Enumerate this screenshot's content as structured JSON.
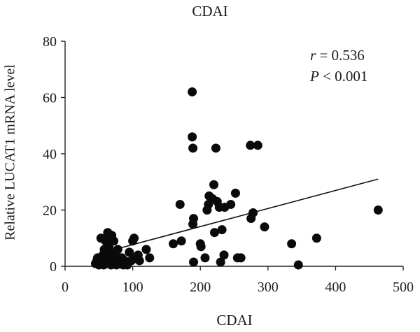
{
  "chart_data": {
    "type": "scatter",
    "title": "CDAI",
    "xlabel": "CDAI",
    "ylabel": "Relative LUCAT1 mRNA level",
    "xlim": [
      0,
      500
    ],
    "ylim": [
      0,
      80
    ],
    "xticks": [
      0,
      100,
      200,
      300,
      400,
      500
    ],
    "yticks": [
      0,
      20,
      40,
      60,
      80
    ],
    "grid": false,
    "annotation": {
      "r_symbol": "r",
      "r_text": " = 0.536",
      "p_symbol": "P",
      "p_text": " < 0.001"
    },
    "points": [
      {
        "x": 45,
        "y": 1
      },
      {
        "x": 47,
        "y": 2
      },
      {
        "x": 48,
        "y": 3
      },
      {
        "x": 50,
        "y": 0.5
      },
      {
        "x": 52,
        "y": 1.5
      },
      {
        "x": 53,
        "y": 10
      },
      {
        "x": 55,
        "y": 2
      },
      {
        "x": 56,
        "y": 4
      },
      {
        "x": 57,
        "y": 0.5
      },
      {
        "x": 58,
        "y": 6
      },
      {
        "x": 60,
        "y": 1
      },
      {
        "x": 60,
        "y": 9
      },
      {
        "x": 62,
        "y": 3
      },
      {
        "x": 63,
        "y": 12
      },
      {
        "x": 64,
        "y": 1
      },
      {
        "x": 65,
        "y": 7
      },
      {
        "x": 66,
        "y": 2
      },
      {
        "x": 67,
        "y": 5
      },
      {
        "x": 68,
        "y": 0.5
      },
      {
        "x": 69,
        "y": 11
      },
      {
        "x": 70,
        "y": 3
      },
      {
        "x": 72,
        "y": 9
      },
      {
        "x": 73,
        "y": 1.5
      },
      {
        "x": 75,
        "y": 4
      },
      {
        "x": 76,
        "y": 0.5
      },
      {
        "x": 78,
        "y": 6
      },
      {
        "x": 80,
        "y": 2
      },
      {
        "x": 82,
        "y": 1
      },
      {
        "x": 84,
        "y": 3
      },
      {
        "x": 86,
        "y": 0.5
      },
      {
        "x": 88,
        "y": 2
      },
      {
        "x": 90,
        "y": 1
      },
      {
        "x": 92,
        "y": 0.5
      },
      {
        "x": 95,
        "y": 5
      },
      {
        "x": 98,
        "y": 2
      },
      {
        "x": 100,
        "y": 9
      },
      {
        "x": 102,
        "y": 10
      },
      {
        "x": 105,
        "y": 3
      },
      {
        "x": 108,
        "y": 4
      },
      {
        "x": 110,
        "y": 2
      },
      {
        "x": 120,
        "y": 6
      },
      {
        "x": 125,
        "y": 3
      },
      {
        "x": 160,
        "y": 8
      },
      {
        "x": 170,
        "y": 22
      },
      {
        "x": 172,
        "y": 9
      },
      {
        "x": 188,
        "y": 62
      },
      {
        "x": 188,
        "y": 46
      },
      {
        "x": 189,
        "y": 42
      },
      {
        "x": 189,
        "y": 15
      },
      {
        "x": 190,
        "y": 17
      },
      {
        "x": 190,
        "y": 1.5
      },
      {
        "x": 200,
        "y": 8
      },
      {
        "x": 201,
        "y": 7
      },
      {
        "x": 207,
        "y": 3
      },
      {
        "x": 210,
        "y": 20
      },
      {
        "x": 212,
        "y": 22
      },
      {
        "x": 213,
        "y": 25
      },
      {
        "x": 218,
        "y": 24
      },
      {
        "x": 220,
        "y": 29
      },
      {
        "x": 221,
        "y": 12
      },
      {
        "x": 223,
        "y": 42
      },
      {
        "x": 225,
        "y": 23
      },
      {
        "x": 228,
        "y": 21
      },
      {
        "x": 230,
        "y": 1.5
      },
      {
        "x": 232,
        "y": 13
      },
      {
        "x": 235,
        "y": 4
      },
      {
        "x": 236,
        "y": 21
      },
      {
        "x": 245,
        "y": 22
      },
      {
        "x": 252,
        "y": 26
      },
      {
        "x": 255,
        "y": 3
      },
      {
        "x": 260,
        "y": 3
      },
      {
        "x": 274,
        "y": 43
      },
      {
        "x": 275,
        "y": 17
      },
      {
        "x": 278,
        "y": 19
      },
      {
        "x": 285,
        "y": 43
      },
      {
        "x": 295,
        "y": 14
      },
      {
        "x": 335,
        "y": 8
      },
      {
        "x": 345,
        "y": 0.5
      },
      {
        "x": 372,
        "y": 10
      },
      {
        "x": 463,
        "y": 20
      }
    ],
    "trendline": {
      "x": [
        50,
        463
      ],
      "y": [
        4.5,
        31
      ]
    }
  }
}
